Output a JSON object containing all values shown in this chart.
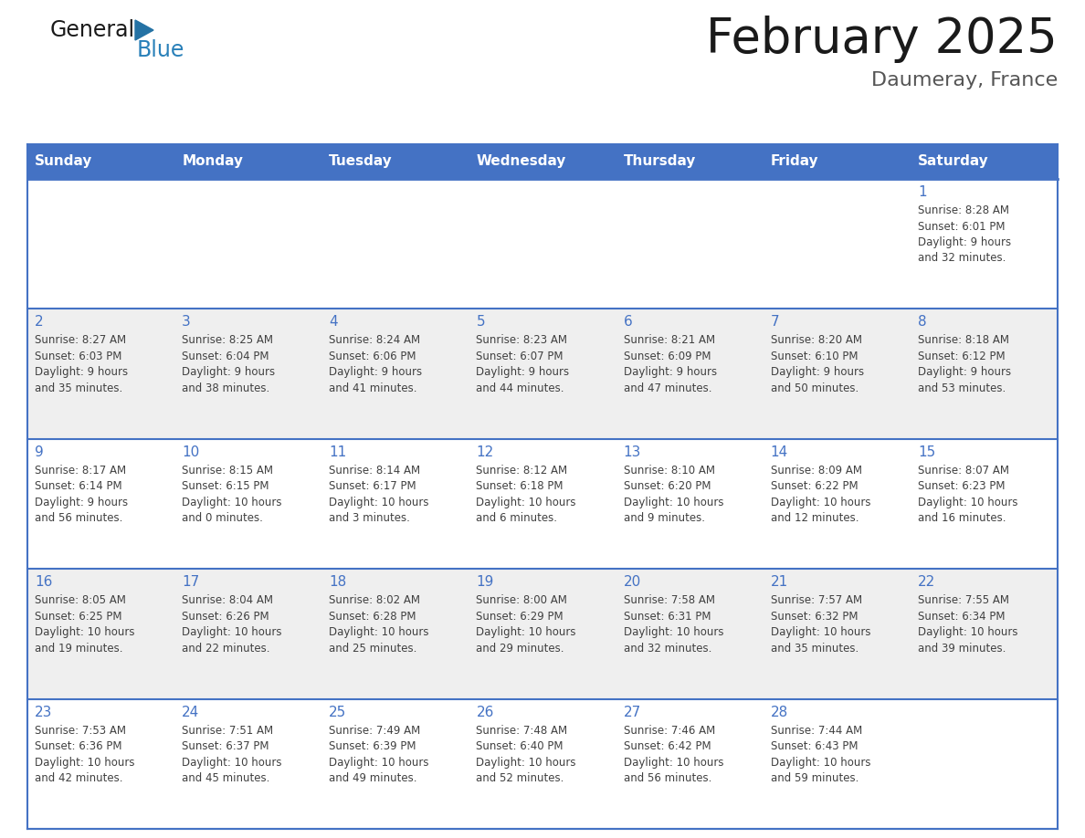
{
  "title": "February 2025",
  "subtitle": "Daumeray, France",
  "days_of_week": [
    "Sunday",
    "Monday",
    "Tuesday",
    "Wednesday",
    "Thursday",
    "Friday",
    "Saturday"
  ],
  "header_bg": "#4472C4",
  "header_text": "#FFFFFF",
  "row_bg": [
    "#FFFFFF",
    "#EFEFEF",
    "#FFFFFF",
    "#EFEFEF",
    "#FFFFFF"
  ],
  "cell_border_color": "#4472C4",
  "day_number_color": "#4472C4",
  "info_text_color": "#404040",
  "title_color": "#1a1a1a",
  "subtitle_color": "#555555",
  "logo_general_color": "#1a1a1a",
  "logo_blue_color": "#2980b9",
  "logo_triangle_color": "#2472a4",
  "calendar_data": [
    {
      "day": 1,
      "col": 6,
      "row": 0,
      "sunrise": "8:28 AM",
      "sunset": "6:01 PM",
      "daylight_h": "9 hours",
      "daylight_m": "and 32 minutes."
    },
    {
      "day": 2,
      "col": 0,
      "row": 1,
      "sunrise": "8:27 AM",
      "sunset": "6:03 PM",
      "daylight_h": "9 hours",
      "daylight_m": "and 35 minutes."
    },
    {
      "day": 3,
      "col": 1,
      "row": 1,
      "sunrise": "8:25 AM",
      "sunset": "6:04 PM",
      "daylight_h": "9 hours",
      "daylight_m": "and 38 minutes."
    },
    {
      "day": 4,
      "col": 2,
      "row": 1,
      "sunrise": "8:24 AM",
      "sunset": "6:06 PM",
      "daylight_h": "9 hours",
      "daylight_m": "and 41 minutes."
    },
    {
      "day": 5,
      "col": 3,
      "row": 1,
      "sunrise": "8:23 AM",
      "sunset": "6:07 PM",
      "daylight_h": "9 hours",
      "daylight_m": "and 44 minutes."
    },
    {
      "day": 6,
      "col": 4,
      "row": 1,
      "sunrise": "8:21 AM",
      "sunset": "6:09 PM",
      "daylight_h": "9 hours",
      "daylight_m": "and 47 minutes."
    },
    {
      "day": 7,
      "col": 5,
      "row": 1,
      "sunrise": "8:20 AM",
      "sunset": "6:10 PM",
      "daylight_h": "9 hours",
      "daylight_m": "and 50 minutes."
    },
    {
      "day": 8,
      "col": 6,
      "row": 1,
      "sunrise": "8:18 AM",
      "sunset": "6:12 PM",
      "daylight_h": "9 hours",
      "daylight_m": "and 53 minutes."
    },
    {
      "day": 9,
      "col": 0,
      "row": 2,
      "sunrise": "8:17 AM",
      "sunset": "6:14 PM",
      "daylight_h": "9 hours",
      "daylight_m": "and 56 minutes."
    },
    {
      "day": 10,
      "col": 1,
      "row": 2,
      "sunrise": "8:15 AM",
      "sunset": "6:15 PM",
      "daylight_h": "10 hours",
      "daylight_m": "and 0 minutes."
    },
    {
      "day": 11,
      "col": 2,
      "row": 2,
      "sunrise": "8:14 AM",
      "sunset": "6:17 PM",
      "daylight_h": "10 hours",
      "daylight_m": "and 3 minutes."
    },
    {
      "day": 12,
      "col": 3,
      "row": 2,
      "sunrise": "8:12 AM",
      "sunset": "6:18 PM",
      "daylight_h": "10 hours",
      "daylight_m": "and 6 minutes."
    },
    {
      "day": 13,
      "col": 4,
      "row": 2,
      "sunrise": "8:10 AM",
      "sunset": "6:20 PM",
      "daylight_h": "10 hours",
      "daylight_m": "and 9 minutes."
    },
    {
      "day": 14,
      "col": 5,
      "row": 2,
      "sunrise": "8:09 AM",
      "sunset": "6:22 PM",
      "daylight_h": "10 hours",
      "daylight_m": "and 12 minutes."
    },
    {
      "day": 15,
      "col": 6,
      "row": 2,
      "sunrise": "8:07 AM",
      "sunset": "6:23 PM",
      "daylight_h": "10 hours",
      "daylight_m": "and 16 minutes."
    },
    {
      "day": 16,
      "col": 0,
      "row": 3,
      "sunrise": "8:05 AM",
      "sunset": "6:25 PM",
      "daylight_h": "10 hours",
      "daylight_m": "and 19 minutes."
    },
    {
      "day": 17,
      "col": 1,
      "row": 3,
      "sunrise": "8:04 AM",
      "sunset": "6:26 PM",
      "daylight_h": "10 hours",
      "daylight_m": "and 22 minutes."
    },
    {
      "day": 18,
      "col": 2,
      "row": 3,
      "sunrise": "8:02 AM",
      "sunset": "6:28 PM",
      "daylight_h": "10 hours",
      "daylight_m": "and 25 minutes."
    },
    {
      "day": 19,
      "col": 3,
      "row": 3,
      "sunrise": "8:00 AM",
      "sunset": "6:29 PM",
      "daylight_h": "10 hours",
      "daylight_m": "and 29 minutes."
    },
    {
      "day": 20,
      "col": 4,
      "row": 3,
      "sunrise": "7:58 AM",
      "sunset": "6:31 PM",
      "daylight_h": "10 hours",
      "daylight_m": "and 32 minutes."
    },
    {
      "day": 21,
      "col": 5,
      "row": 3,
      "sunrise": "7:57 AM",
      "sunset": "6:32 PM",
      "daylight_h": "10 hours",
      "daylight_m": "and 35 minutes."
    },
    {
      "day": 22,
      "col": 6,
      "row": 3,
      "sunrise": "7:55 AM",
      "sunset": "6:34 PM",
      "daylight_h": "10 hours",
      "daylight_m": "and 39 minutes."
    },
    {
      "day": 23,
      "col": 0,
      "row": 4,
      "sunrise": "7:53 AM",
      "sunset": "6:36 PM",
      "daylight_h": "10 hours",
      "daylight_m": "and 42 minutes."
    },
    {
      "day": 24,
      "col": 1,
      "row": 4,
      "sunrise": "7:51 AM",
      "sunset": "6:37 PM",
      "daylight_h": "10 hours",
      "daylight_m": "and 45 minutes."
    },
    {
      "day": 25,
      "col": 2,
      "row": 4,
      "sunrise": "7:49 AM",
      "sunset": "6:39 PM",
      "daylight_h": "10 hours",
      "daylight_m": "and 49 minutes."
    },
    {
      "day": 26,
      "col": 3,
      "row": 4,
      "sunrise": "7:48 AM",
      "sunset": "6:40 PM",
      "daylight_h": "10 hours",
      "daylight_m": "and 52 minutes."
    },
    {
      "day": 27,
      "col": 4,
      "row": 4,
      "sunrise": "7:46 AM",
      "sunset": "6:42 PM",
      "daylight_h": "10 hours",
      "daylight_m": "and 56 minutes."
    },
    {
      "day": 28,
      "col": 5,
      "row": 4,
      "sunrise": "7:44 AM",
      "sunset": "6:43 PM",
      "daylight_h": "10 hours",
      "daylight_m": "and 59 minutes."
    }
  ]
}
